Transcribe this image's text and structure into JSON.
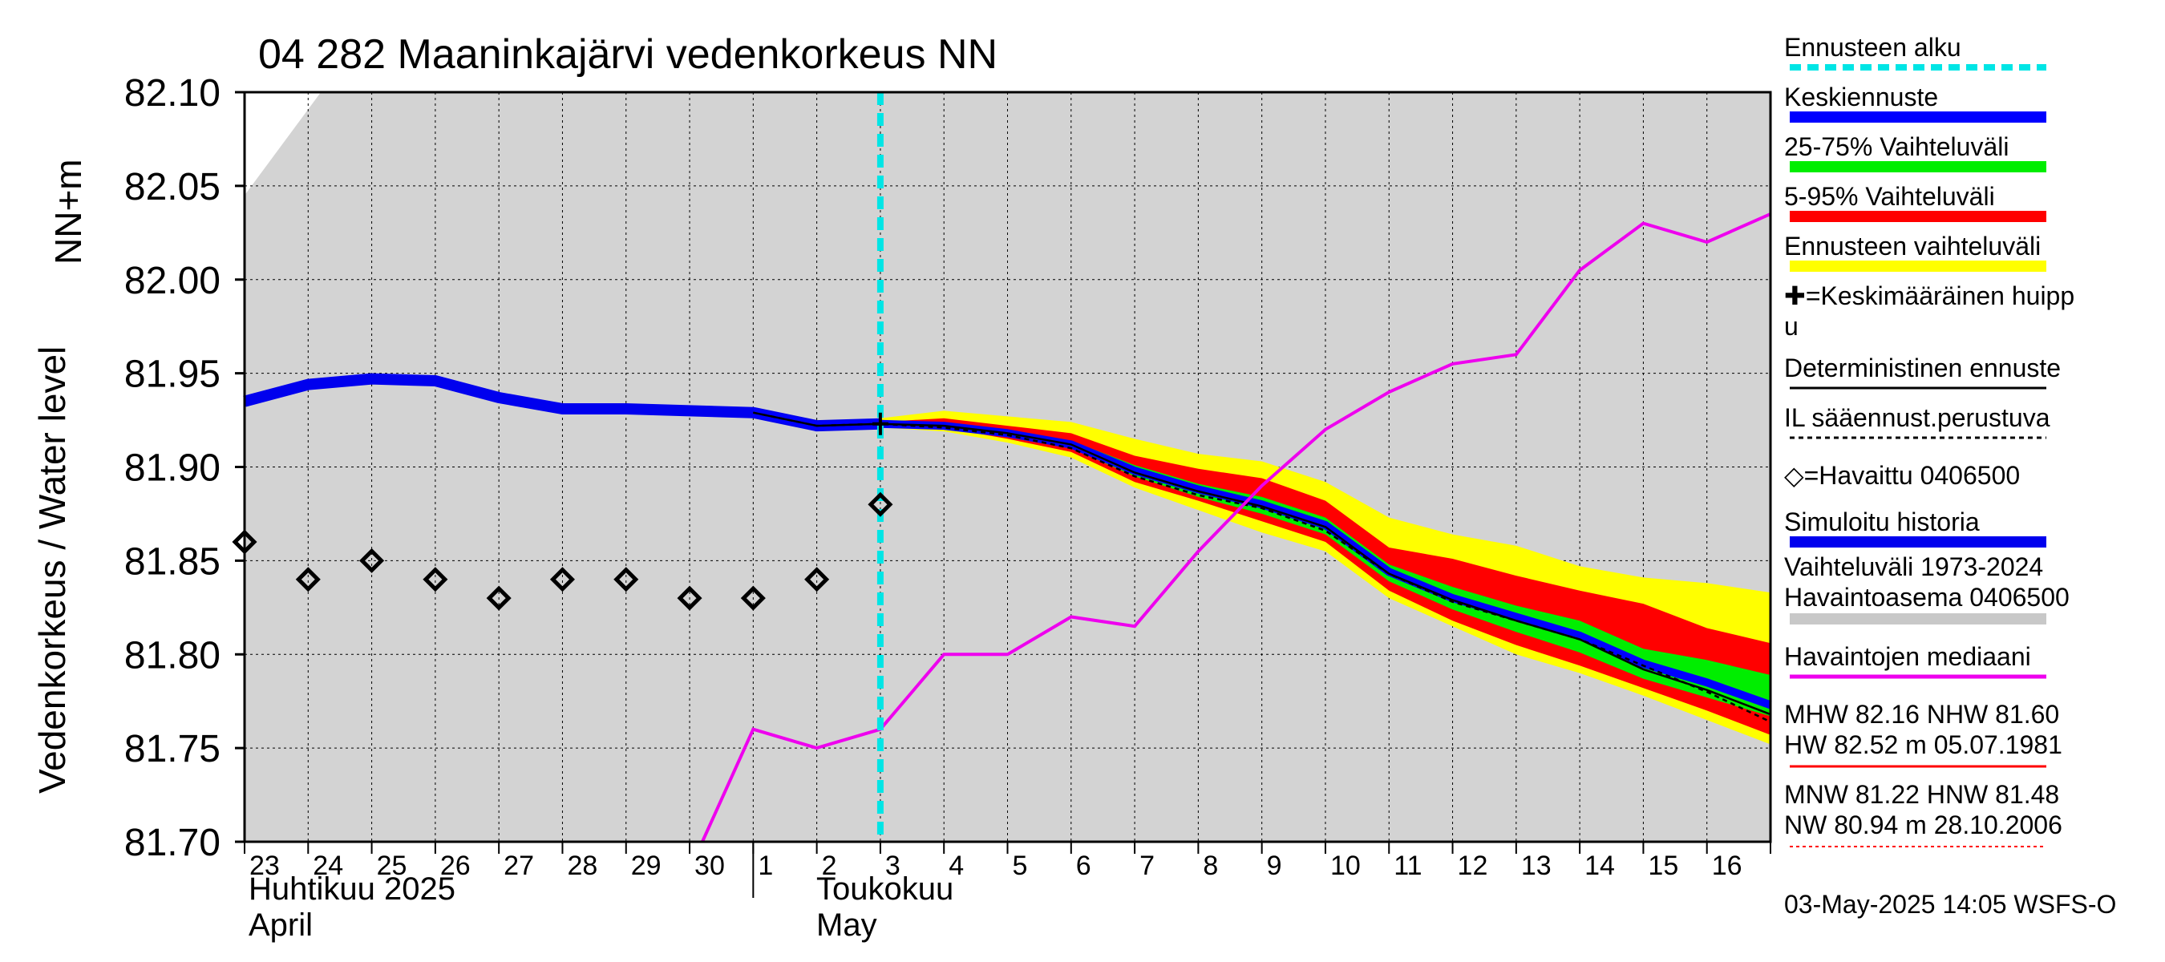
{
  "title": "04 282 Maaninkajärvi vedenkorkeus NN",
  "ylabel": "Vedenkorkeus / Water level",
  "yunit": "NN+m",
  "footer": "03-May-2025 14:05 WSFS-O",
  "months": {
    "april_fi": "Huhtikuu  2025",
    "april_en": "April",
    "may_fi": "Toukokuu",
    "may_en": "May"
  },
  "colors": {
    "plot_bg": "#d3d3d3",
    "forecast_start": "#00e5e5",
    "mean_forecast": "#0000ff",
    "range_25_75": "#00ee00",
    "range_5_95": "#ff0000",
    "forecast_range": "#ffff00",
    "deterministic": "#000000",
    "il_forecast": "#000000",
    "simulated_history": "#0000ee",
    "historical_range": "#c8c8c8",
    "median": "#ee00ee",
    "hw_line": "#ff0000",
    "nw_line": "#ff0000"
  },
  "legend": [
    {
      "key": "forecast_start",
      "label": "Ennusteen alku",
      "style": "dashed-thick"
    },
    {
      "key": "mean_forecast",
      "label": "Keskiennuste",
      "style": "thick"
    },
    {
      "key": "range_25_75",
      "label": "25-75% Vaihteluväli",
      "style": "thick"
    },
    {
      "key": "range_5_95",
      "label": "5-95% Vaihteluväli",
      "style": "thick"
    },
    {
      "key": "forecast_range",
      "label": "Ennusteen vaihteluväli",
      "style": "thick"
    },
    {
      "key": "mean_peak",
      "label": "✚=Keskimääräinen huipp\nu",
      "style": "none"
    },
    {
      "key": "deterministic",
      "label": "Deterministinen ennuste",
      "style": "thin"
    },
    {
      "key": "il_forecast",
      "label": "IL sääennust.perustuva",
      "style": "dashed-thin"
    },
    {
      "key": "observed",
      "label": "◇=Havaittu 0406500",
      "style": "none"
    },
    {
      "key": "simulated_history",
      "label": "Simuloitu historia",
      "style": "thick"
    },
    {
      "key": "historical_range",
      "label": "Vaihteluväli 1973-2024\n Havaintoasema 0406500",
      "style": "thick"
    },
    {
      "key": "median",
      "label": "Havaintojen mediaani",
      "style": "medium"
    },
    {
      "key": "hw_line",
      "label": "MHW  82.16 NHW  81.60\nHW  82.52 m 05.07.1981",
      "style": "thin"
    },
    {
      "key": "nw_line",
      "label": "MNW  81.22 HNW  81.48\nNW  80.94 m 28.10.2006",
      "style": "dotted"
    }
  ],
  "chart_data": {
    "type": "line",
    "title": "04 282 Maaninkajärvi vedenkorkeus NN",
    "ylabel": "Vedenkorkeus / Water level NN+m",
    "xlabel": "Huhtikuu 2025 April / Toukokuu May",
    "ylim": [
      81.7,
      82.1
    ],
    "yticks": [
      81.7,
      81.75,
      81.8,
      81.85,
      81.9,
      81.95,
      82.0,
      82.05,
      82.1
    ],
    "ytick_labels": [
      "81.70",
      "81.75",
      "81.80",
      "81.85",
      "81.90",
      "81.95",
      "82.00",
      "82.05",
      "82.10"
    ],
    "x_range": [
      0,
      24
    ],
    "x_tick_labels": [
      "23",
      "24",
      "25",
      "26",
      "27",
      "28",
      "29",
      "30",
      "1",
      "2",
      "3",
      "4",
      "5",
      "6",
      "7",
      "8",
      "9",
      "10",
      "11",
      "12",
      "13",
      "14",
      "15",
      "16"
    ],
    "forecast_start_x": 10.0,
    "grid": true,
    "simulated_history": {
      "x": [
        0,
        1,
        2,
        3,
        4,
        5,
        6,
        7,
        8,
        9,
        10
      ],
      "y": [
        81.935,
        81.944,
        81.947,
        81.946,
        81.937,
        81.931,
        81.931,
        81.93,
        81.929,
        81.922,
        81.923
      ]
    },
    "observed": {
      "x": [
        0,
        1,
        2,
        3,
        4,
        5,
        6,
        7,
        8,
        9,
        10
      ],
      "y": [
        81.86,
        81.84,
        81.85,
        81.84,
        81.83,
        81.84,
        81.84,
        81.83,
        81.83,
        81.84,
        81.88
      ]
    },
    "mean_peak": {
      "x": 10,
      "y": 81.923
    },
    "forecast_x": [
      8,
      9,
      10,
      11,
      12,
      13,
      14,
      15,
      16,
      17,
      18,
      19,
      20,
      21,
      22,
      23,
      24
    ],
    "forecast_range": {
      "upper": [
        81.929,
        81.922,
        81.926,
        81.93,
        81.927,
        81.924,
        81.915,
        81.907,
        81.903,
        81.892,
        81.873,
        81.864,
        81.858,
        81.847,
        81.841,
        81.838,
        81.833
      ],
      "lower": [
        81.929,
        81.921,
        81.921,
        81.919,
        81.913,
        81.905,
        81.889,
        81.877,
        81.865,
        81.855,
        81.83,
        81.815,
        81.8,
        81.79,
        81.778,
        81.765,
        81.752
      ]
    },
    "range_5_95": {
      "upper": [
        81.929,
        81.922,
        81.924,
        81.926,
        81.922,
        81.918,
        81.906,
        81.899,
        81.894,
        81.882,
        81.857,
        81.851,
        81.842,
        81.834,
        81.827,
        81.814,
        81.806
      ],
      "lower": [
        81.929,
        81.921,
        81.922,
        81.921,
        81.915,
        81.908,
        81.892,
        81.882,
        81.871,
        81.86,
        81.834,
        81.818,
        81.805,
        81.794,
        81.782,
        81.77,
        81.757
      ]
    },
    "range_25_75": {
      "upper": [
        81.929,
        81.922,
        81.923,
        81.923,
        81.919,
        81.914,
        81.901,
        81.891,
        81.884,
        81.873,
        81.848,
        81.836,
        81.826,
        81.818,
        81.803,
        81.797,
        81.789
      ],
      "lower": [
        81.929,
        81.921,
        81.922,
        81.922,
        81.917,
        81.91,
        81.895,
        81.884,
        81.875,
        81.864,
        81.839,
        81.824,
        81.812,
        81.801,
        81.787,
        81.777,
        81.767
      ]
    },
    "mean_forecast": [
      81.929,
      81.922,
      81.923,
      81.922,
      81.918,
      81.912,
      81.898,
      81.888,
      81.88,
      81.869,
      81.844,
      81.83,
      81.82,
      81.81,
      81.795,
      81.785,
      81.773
    ],
    "deterministic": [
      81.929,
      81.922,
      81.923,
      81.922,
      81.918,
      81.912,
      81.897,
      81.887,
      81.879,
      81.868,
      81.843,
      81.829,
      81.818,
      81.808,
      81.792,
      81.781,
      81.768
    ],
    "il_forecast": [
      81.929,
      81.922,
      81.923,
      81.921,
      81.917,
      81.91,
      81.895,
      81.885,
      81.878,
      81.866,
      81.843,
      81.828,
      81.818,
      81.808,
      81.794,
      81.78,
      81.764
    ],
    "median": {
      "x": [
        7.2,
        8,
        9,
        10,
        11,
        12,
        13,
        14,
        15,
        16,
        17,
        18,
        19,
        20,
        21,
        22,
        23,
        24
      ],
      "y": [
        81.7,
        81.76,
        81.75,
        81.76,
        81.8,
        81.8,
        81.82,
        81.815,
        81.855,
        81.89,
        81.92,
        81.94,
        81.955,
        81.96,
        82.005,
        82.03,
        82.02,
        82.035
      ]
    },
    "historical_range_upper": {
      "x": [
        0,
        1.2,
        24
      ],
      "y": [
        82.045,
        82.1,
        82.1
      ]
    }
  }
}
